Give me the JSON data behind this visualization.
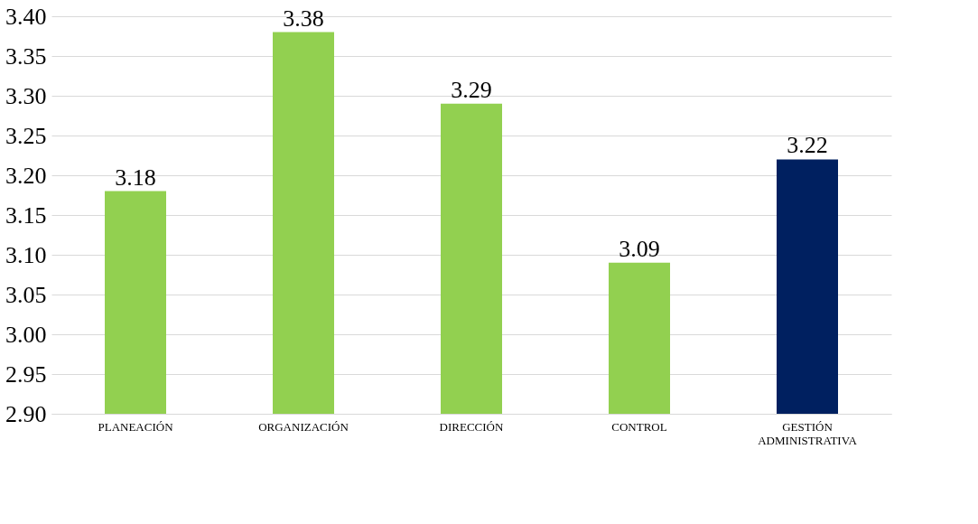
{
  "chart_data": {
    "type": "bar",
    "categories": [
      "PLANEACIÓN",
      "ORGANIZACIÓN",
      "DIRECCIÓN",
      "CONTROL",
      "GESTIÓN ADMINISTRATIVA"
    ],
    "values": [
      3.18,
      3.38,
      3.29,
      3.09,
      3.22
    ],
    "colors": [
      "#92d050",
      "#92d050",
      "#92d050",
      "#92d050",
      "#002060"
    ],
    "ylim": [
      2.9,
      3.4
    ],
    "yticks": [
      {
        "value": 2.9,
        "label": "2.90"
      },
      {
        "value": 2.95,
        "label": "2.95"
      },
      {
        "value": 3.0,
        "label": "3.00"
      },
      {
        "value": 3.05,
        "label": "3.05"
      },
      {
        "value": 3.1,
        "label": "3.10"
      },
      {
        "value": 3.15,
        "label": "3.15"
      },
      {
        "value": 3.2,
        "label": "3.20"
      },
      {
        "value": 3.25,
        "label": "3.25"
      },
      {
        "value": 3.3,
        "label": "3.30"
      },
      {
        "value": 3.35,
        "label": "3.35"
      },
      {
        "value": 3.4,
        "label": "3.40"
      }
    ],
    "grid": "y",
    "data_labels": true,
    "legend": false
  }
}
